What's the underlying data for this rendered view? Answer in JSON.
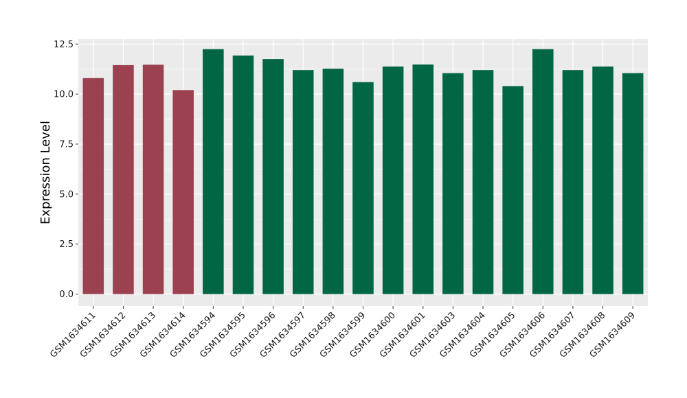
{
  "chart_data": {
    "type": "bar",
    "title": "",
    "xlabel": "",
    "ylabel": "Expression Level",
    "ylim": [
      -0.6,
      12.75
    ],
    "yticks": [
      0.0,
      2.5,
      5.0,
      7.5,
      10.0,
      12.5
    ],
    "ytick_labels": [
      "0.0",
      "2.5",
      "5.0",
      "7.5",
      "10.0",
      "12.5"
    ],
    "grid": true,
    "legend": "none",
    "categories": [
      "GSM1634611",
      "GSM1634612",
      "GSM1634613",
      "GSM1634614",
      "GSM1634594",
      "GSM1634595",
      "GSM1634596",
      "GSM1634597",
      "GSM1634598",
      "GSM1634599",
      "GSM1634600",
      "GSM1634601",
      "GSM1634603",
      "GSM1634604",
      "GSM1634605",
      "GSM1634606",
      "GSM1634607",
      "GSM1634608",
      "GSM1634609"
    ],
    "values": [
      10.8,
      11.45,
      11.47,
      10.2,
      12.25,
      11.93,
      11.75,
      11.2,
      11.27,
      10.6,
      11.38,
      11.48,
      11.05,
      11.2,
      10.4,
      12.25,
      11.2,
      11.38,
      11.05
    ],
    "groups": [
      0,
      0,
      0,
      0,
      1,
      1,
      1,
      1,
      1,
      1,
      1,
      1,
      1,
      1,
      1,
      1,
      1,
      1,
      1
    ],
    "group_colors": [
      "#9b4150",
      "#006644"
    ],
    "panel_color": "#ebebeb",
    "grid_color": "#ffffff"
  }
}
